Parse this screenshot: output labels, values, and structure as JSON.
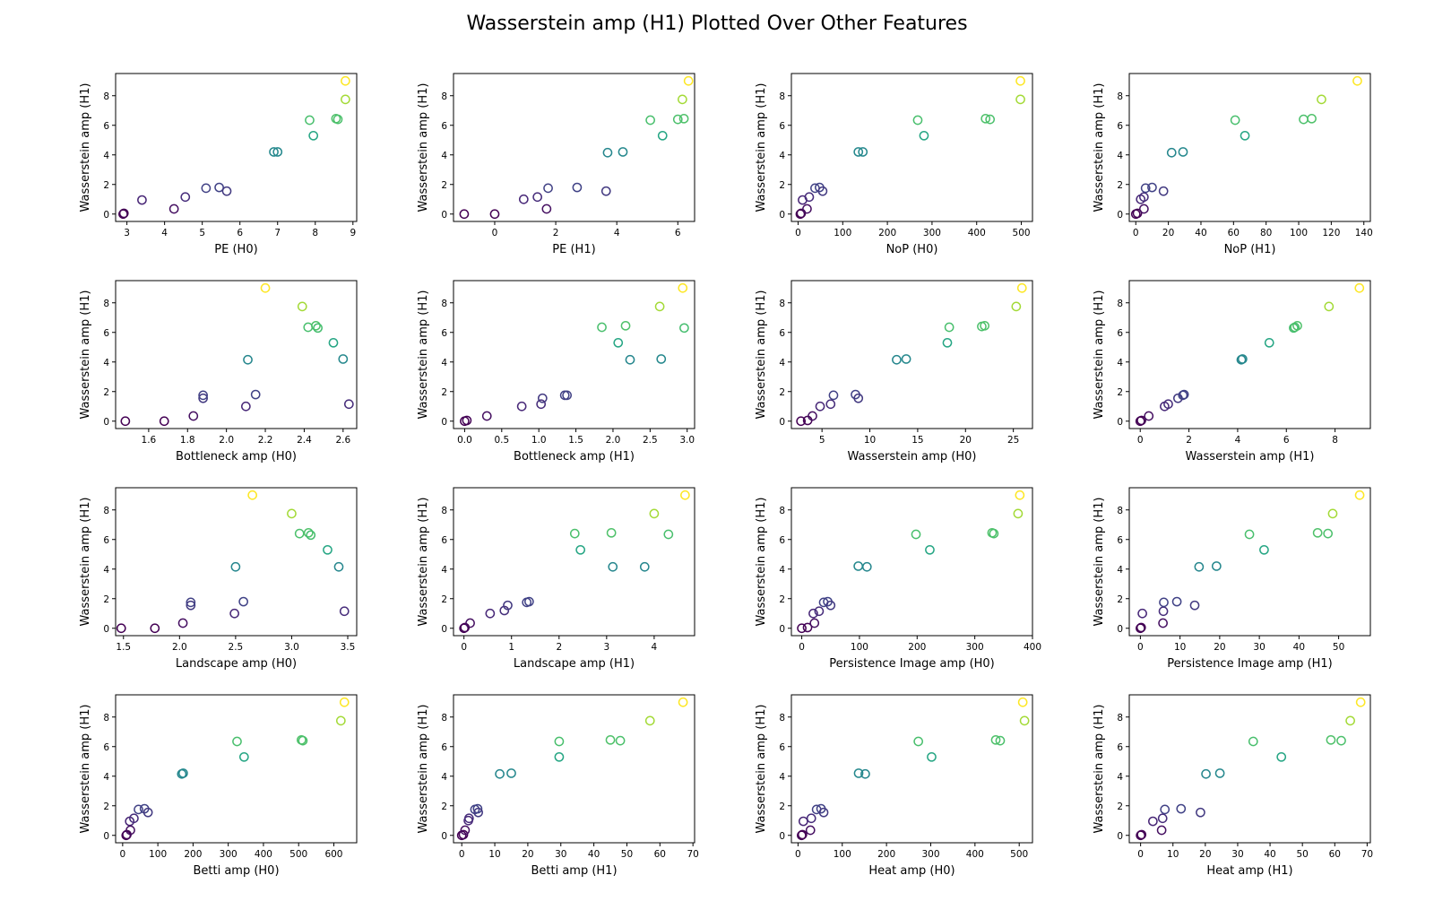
{
  "figure": {
    "title": "Wasserstein amp (H1) Plotted Over Other Features"
  },
  "colors": {
    "palette": "viridis",
    "point_style": "hollow-circle",
    "axes": "#000000"
  },
  "chart_data": [
    {
      "type": "scatter",
      "xlabel": "PE (H0)",
      "ylabel": "Wasserstein amp (H1)",
      "xlim": [
        2.7,
        9.1
      ],
      "ylim": [
        -0.5,
        9.5
      ],
      "xticks": [
        3,
        4,
        5,
        6,
        7,
        8,
        9
      ],
      "yticks": [
        0,
        2,
        4,
        6,
        8
      ],
      "points": [
        [
          2.9,
          0.0
        ],
        [
          2.92,
          0.05
        ],
        [
          3.4,
          0.95
        ],
        [
          4.25,
          0.35
        ],
        [
          4.55,
          1.15
        ],
        [
          5.1,
          1.75
        ],
        [
          5.45,
          1.8
        ],
        [
          5.65,
          1.55
        ],
        [
          6.9,
          4.2
        ],
        [
          7.0,
          4.2
        ],
        [
          7.85,
          6.35
        ],
        [
          7.95,
          5.3
        ],
        [
          8.55,
          6.45
        ],
        [
          8.6,
          6.4
        ],
        [
          8.8,
          7.75
        ],
        [
          8.8,
          9.0
        ]
      ]
    },
    {
      "type": "scatter",
      "xlabel": "PE (H1)",
      "ylabel": "Wasserstein amp (H1)",
      "xlim": [
        -1.35,
        6.55
      ],
      "ylim": [
        -0.5,
        9.5
      ],
      "xticks": [
        0,
        2,
        4,
        6
      ],
      "yticks": [
        0,
        2,
        4,
        6,
        8
      ],
      "points": [
        [
          -1.0,
          0.0
        ],
        [
          0.0,
          0.0
        ],
        [
          0.95,
          1.0
        ],
        [
          1.4,
          1.15
        ],
        [
          1.7,
          0.35
        ],
        [
          1.75,
          1.75
        ],
        [
          2.7,
          1.8
        ],
        [
          3.65,
          1.55
        ],
        [
          3.7,
          4.15
        ],
        [
          4.2,
          4.2
        ],
        [
          5.1,
          6.35
        ],
        [
          5.5,
          5.3
        ],
        [
          6.0,
          6.4
        ],
        [
          6.15,
          7.75
        ],
        [
          6.2,
          6.45
        ],
        [
          6.35,
          9.0
        ]
      ]
    },
    {
      "type": "scatter",
      "xlabel": "NoP (H0)",
      "ylabel": "Wasserstein amp (H1)",
      "xlim": [
        -15,
        525
      ],
      "ylim": [
        -0.5,
        9.5
      ],
      "xticks": [
        0,
        100,
        200,
        300,
        400,
        500
      ],
      "yticks": [
        0,
        2,
        4,
        6,
        8
      ],
      "points": [
        [
          5,
          0.0
        ],
        [
          7,
          0.05
        ],
        [
          10,
          0.95
        ],
        [
          20,
          0.35
        ],
        [
          25,
          1.15
        ],
        [
          38,
          1.75
        ],
        [
          48,
          1.8
        ],
        [
          55,
          1.55
        ],
        [
          135,
          4.2
        ],
        [
          145,
          4.2
        ],
        [
          268,
          6.35
        ],
        [
          282,
          5.3
        ],
        [
          420,
          6.45
        ],
        [
          430,
          6.4
        ],
        [
          498,
          7.75
        ],
        [
          498,
          9.0
        ]
      ]
    },
    {
      "type": "scatter",
      "xlabel": "NoP (H1)",
      "ylabel": "Wasserstein amp (H1)",
      "xlim": [
        -4,
        144
      ],
      "ylim": [
        -0.5,
        9.5
      ],
      "xticks": [
        0,
        20,
        40,
        60,
        80,
        100,
        120,
        140
      ],
      "yticks": [
        0,
        2,
        4,
        6,
        8
      ],
      "points": [
        [
          0,
          0.0
        ],
        [
          1,
          0.05
        ],
        [
          3,
          1.0
        ],
        [
          5,
          0.35
        ],
        [
          5,
          1.15
        ],
        [
          6,
          1.75
        ],
        [
          10,
          1.8
        ],
        [
          17,
          1.55
        ],
        [
          22,
          4.15
        ],
        [
          29,
          4.2
        ],
        [
          61,
          6.35
        ],
        [
          67,
          5.3
        ],
        [
          103,
          6.4
        ],
        [
          108,
          6.45
        ],
        [
          114,
          7.75
        ],
        [
          136,
          9.0
        ]
      ]
    },
    {
      "type": "scatter",
      "xlabel": "Bottleneck amp (H0)",
      "ylabel": "Wasserstein amp (H1)",
      "xlim": [
        1.43,
        2.67
      ],
      "ylim": [
        -0.5,
        9.5
      ],
      "xticks": [
        1.6,
        1.8,
        2.0,
        2.2,
        2.4,
        2.6
      ],
      "yticks": [
        0,
        2,
        4,
        6,
        8
      ],
      "points": [
        [
          1.48,
          0.0
        ],
        [
          1.68,
          0.0
        ],
        [
          1.83,
          0.35
        ],
        [
          1.88,
          1.55
        ],
        [
          1.88,
          1.75
        ],
        [
          2.1,
          1.0
        ],
        [
          2.11,
          4.15
        ],
        [
          2.15,
          1.8
        ],
        [
          2.2,
          9.0
        ],
        [
          2.39,
          7.75
        ],
        [
          2.42,
          6.35
        ],
        [
          2.46,
          6.45
        ],
        [
          2.47,
          6.3
        ],
        [
          2.55,
          5.3
        ],
        [
          2.6,
          4.2
        ],
        [
          2.63,
          1.15
        ]
      ]
    },
    {
      "type": "scatter",
      "xlabel": "Bottleneck amp (H1)",
      "ylabel": "Wasserstein amp (H1)",
      "xlim": [
        -0.15,
        3.1
      ],
      "ylim": [
        -0.5,
        9.5
      ],
      "xticks": [
        0.0,
        0.5,
        1.0,
        1.5,
        2.0,
        2.5,
        3.0
      ],
      "yticks": [
        0,
        2,
        4,
        6,
        8
      ],
      "points": [
        [
          0.0,
          0.0
        ],
        [
          0.03,
          0.05
        ],
        [
          0.3,
          0.35
        ],
        [
          0.77,
          1.0
        ],
        [
          1.03,
          1.15
        ],
        [
          1.05,
          1.55
        ],
        [
          1.35,
          1.75
        ],
        [
          1.38,
          1.75
        ],
        [
          1.85,
          6.35
        ],
        [
          2.07,
          5.3
        ],
        [
          2.17,
          6.45
        ],
        [
          2.23,
          4.15
        ],
        [
          2.63,
          7.75
        ],
        [
          2.65,
          4.2
        ],
        [
          2.94,
          9.0
        ],
        [
          2.96,
          6.3
        ]
      ]
    },
    {
      "type": "scatter",
      "xlabel": "Wasserstein amp (H0)",
      "ylabel": "Wasserstein amp (H1)",
      "xlim": [
        1.8,
        27.0
      ],
      "ylim": [
        -0.5,
        9.5
      ],
      "xticks": [
        5,
        10,
        15,
        20,
        25
      ],
      "yticks": [
        0,
        2,
        4,
        6,
        8
      ],
      "points": [
        [
          2.8,
          0.0
        ],
        [
          3.5,
          0.05
        ],
        [
          4.0,
          0.35
        ],
        [
          4.8,
          1.0
        ],
        [
          5.9,
          1.15
        ],
        [
          6.2,
          1.75
        ],
        [
          8.5,
          1.8
        ],
        [
          8.8,
          1.55
        ],
        [
          12.8,
          4.15
        ],
        [
          13.8,
          4.2
        ],
        [
          18.1,
          5.3
        ],
        [
          18.3,
          6.35
        ],
        [
          21.7,
          6.4
        ],
        [
          22.0,
          6.45
        ],
        [
          25.3,
          7.75
        ],
        [
          25.9,
          9.0
        ]
      ]
    },
    {
      "type": "scatter",
      "xlabel": "Wasserstein amp (H1)",
      "ylabel": "Wasserstein amp (H1)",
      "xlim": [
        -0.45,
        9.45
      ],
      "ylim": [
        -0.5,
        9.5
      ],
      "xticks": [
        0,
        2,
        4,
        6,
        8
      ],
      "yticks": [
        0,
        2,
        4,
        6,
        8
      ],
      "points": [
        [
          0.0,
          0.0
        ],
        [
          0.05,
          0.05
        ],
        [
          0.35,
          0.35
        ],
        [
          1.0,
          1.0
        ],
        [
          1.15,
          1.15
        ],
        [
          1.55,
          1.55
        ],
        [
          1.75,
          1.75
        ],
        [
          1.8,
          1.8
        ],
        [
          4.15,
          4.15
        ],
        [
          4.2,
          4.2
        ],
        [
          5.3,
          5.3
        ],
        [
          6.3,
          6.3
        ],
        [
          6.35,
          6.35
        ],
        [
          6.45,
          6.45
        ],
        [
          7.75,
          7.75
        ],
        [
          9.0,
          9.0
        ]
      ]
    },
    {
      "type": "scatter",
      "xlabel": "Landscape amp (H0)",
      "ylabel": "Wasserstein amp (H1)",
      "xlim": [
        1.43,
        3.58
      ],
      "ylim": [
        -0.5,
        9.5
      ],
      "xticks": [
        1.5,
        2.0,
        2.5,
        3.0,
        3.5
      ],
      "yticks": [
        0,
        2,
        4,
        6,
        8
      ],
      "points": [
        [
          1.48,
          0.0
        ],
        [
          1.78,
          0.0
        ],
        [
          2.03,
          0.35
        ],
        [
          2.1,
          1.55
        ],
        [
          2.1,
          1.75
        ],
        [
          2.49,
          1.0
        ],
        [
          2.5,
          4.15
        ],
        [
          2.57,
          1.8
        ],
        [
          2.65,
          9.0
        ],
        [
          3.0,
          7.75
        ],
        [
          3.07,
          6.4
        ],
        [
          3.15,
          6.45
        ],
        [
          3.17,
          6.3
        ],
        [
          3.32,
          5.3
        ],
        [
          3.42,
          4.15
        ],
        [
          3.47,
          1.15
        ]
      ]
    },
    {
      "type": "scatter",
      "xlabel": "Landscape amp (H1)",
      "ylabel": "Wasserstein amp (H1)",
      "xlim": [
        -0.22,
        4.85
      ],
      "ylim": [
        -0.5,
        9.5
      ],
      "xticks": [
        0,
        1,
        2,
        3,
        4
      ],
      "yticks": [
        0,
        2,
        4,
        6,
        8
      ],
      "points": [
        [
          0.0,
          0.0
        ],
        [
          0.02,
          0.05
        ],
        [
          0.13,
          0.35
        ],
        [
          0.55,
          1.0
        ],
        [
          0.85,
          1.2
        ],
        [
          0.92,
          1.55
        ],
        [
          1.32,
          1.75
        ],
        [
          1.37,
          1.8
        ],
        [
          2.33,
          6.4
        ],
        [
          2.45,
          5.3
        ],
        [
          3.1,
          6.45
        ],
        [
          3.13,
          4.15
        ],
        [
          3.8,
          4.15
        ],
        [
          4.0,
          7.75
        ],
        [
          4.3,
          6.35
        ],
        [
          4.65,
          9.0
        ]
      ]
    },
    {
      "type": "scatter",
      "xlabel": "Persistence Image amp (H0)",
      "ylabel": "Wasserstein amp (H1)",
      "xlim": [
        -18,
        400
      ],
      "ylim": [
        -0.5,
        9.5
      ],
      "xticks": [
        0,
        100,
        200,
        300,
        400
      ],
      "yticks": [
        0,
        2,
        4,
        6,
        8
      ],
      "points": [
        [
          0,
          0.0
        ],
        [
          10,
          0.05
        ],
        [
          20,
          1.0
        ],
        [
          22,
          0.35
        ],
        [
          30,
          1.15
        ],
        [
          38,
          1.75
        ],
        [
          45,
          1.8
        ],
        [
          50,
          1.55
        ],
        [
          98,
          4.2
        ],
        [
          113,
          4.15
        ],
        [
          198,
          6.35
        ],
        [
          222,
          5.3
        ],
        [
          330,
          6.45
        ],
        [
          333,
          6.4
        ],
        [
          375,
          7.75
        ],
        [
          378,
          9.0
        ]
      ]
    },
    {
      "type": "scatter",
      "xlabel": "Persistence Image amp (H1)",
      "ylabel": "Wasserstein amp (H1)",
      "xlim": [
        -2.8,
        58
      ],
      "ylim": [
        -0.5,
        9.5
      ],
      "xticks": [
        0,
        10,
        20,
        30,
        40,
        50
      ],
      "yticks": [
        0,
        2,
        4,
        6,
        8
      ],
      "points": [
        [
          0,
          0.0
        ],
        [
          0.2,
          0.05
        ],
        [
          0.5,
          1.0
        ],
        [
          5.7,
          0.35
        ],
        [
          5.8,
          1.15
        ],
        [
          5.9,
          1.75
        ],
        [
          9.2,
          1.8
        ],
        [
          13.7,
          1.55
        ],
        [
          14.8,
          4.15
        ],
        [
          19.2,
          4.2
        ],
        [
          27.5,
          6.35
        ],
        [
          31.2,
          5.3
        ],
        [
          44.7,
          6.45
        ],
        [
          47.3,
          6.4
        ],
        [
          48.5,
          7.75
        ],
        [
          55.3,
          9.0
        ]
      ]
    },
    {
      "type": "scatter",
      "xlabel": "Betti amp (H0)",
      "ylabel": "Wasserstein amp (H1)",
      "xlim": [
        -20,
        665
      ],
      "ylim": [
        -0.5,
        9.5
      ],
      "xticks": [
        0,
        100,
        200,
        300,
        400,
        500,
        600
      ],
      "yticks": [
        0,
        2,
        4,
        6,
        8
      ],
      "points": [
        [
          10,
          0.0
        ],
        [
          12,
          0.05
        ],
        [
          20,
          0.95
        ],
        [
          22,
          0.35
        ],
        [
          32,
          1.15
        ],
        [
          45,
          1.75
        ],
        [
          62,
          1.8
        ],
        [
          72,
          1.55
        ],
        [
          168,
          4.15
        ],
        [
          172,
          4.2
        ],
        [
          325,
          6.35
        ],
        [
          345,
          5.3
        ],
        [
          508,
          6.45
        ],
        [
          512,
          6.4
        ],
        [
          620,
          7.75
        ],
        [
          630,
          9.0
        ]
      ]
    },
    {
      "type": "scatter",
      "xlabel": "Betti amp (H1)",
      "ylabel": "Wasserstein amp (H1)",
      "xlim": [
        -2.5,
        70.5
      ],
      "ylim": [
        -0.5,
        9.5
      ],
      "xticks": [
        0,
        10,
        20,
        30,
        40,
        50,
        60,
        70
      ],
      "yticks": [
        0,
        2,
        4,
        6,
        8
      ],
      "points": [
        [
          0,
          0.0
        ],
        [
          0.5,
          0.05
        ],
        [
          1,
          0.35
        ],
        [
          2,
          1.0
        ],
        [
          2.2,
          1.15
        ],
        [
          4,
          1.75
        ],
        [
          4.8,
          1.8
        ],
        [
          5,
          1.55
        ],
        [
          11.5,
          4.15
        ],
        [
          15,
          4.2
        ],
        [
          29.5,
          5.3
        ],
        [
          29.5,
          6.35
        ],
        [
          45,
          6.45
        ],
        [
          48,
          6.4
        ],
        [
          57,
          7.75
        ],
        [
          67,
          9.0
        ]
      ]
    },
    {
      "type": "scatter",
      "xlabel": "Heat amp (H0)",
      "ylabel": "Wasserstein amp (H1)",
      "xlim": [
        -15,
        530
      ],
      "ylim": [
        -0.5,
        9.5
      ],
      "xticks": [
        0,
        100,
        200,
        300,
        400,
        500
      ],
      "yticks": [
        0,
        2,
        4,
        6,
        8
      ],
      "points": [
        [
          8,
          0.0
        ],
        [
          10,
          0.05
        ],
        [
          12,
          0.95
        ],
        [
          28,
          0.35
        ],
        [
          30,
          1.15
        ],
        [
          42,
          1.75
        ],
        [
          52,
          1.8
        ],
        [
          58,
          1.55
        ],
        [
          137,
          4.2
        ],
        [
          152,
          4.15
        ],
        [
          272,
          6.35
        ],
        [
          302,
          5.3
        ],
        [
          447,
          6.45
        ],
        [
          457,
          6.4
        ],
        [
          508,
          9.0
        ],
        [
          512,
          7.75
        ]
      ]
    },
    {
      "type": "scatter",
      "xlabel": "Heat amp (H1)",
      "ylabel": "Wasserstein amp (H1)",
      "xlim": [
        -3.5,
        71
      ],
      "ylim": [
        -0.5,
        9.5
      ],
      "xticks": [
        0,
        10,
        20,
        30,
        40,
        50,
        60,
        70
      ],
      "yticks": [
        0,
        2,
        4,
        6,
        8
      ],
      "points": [
        [
          0,
          0.0
        ],
        [
          0.3,
          0.05
        ],
        [
          3.8,
          0.95
        ],
        [
          6.5,
          0.35
        ],
        [
          6.8,
          1.15
        ],
        [
          7.5,
          1.75
        ],
        [
          12.5,
          1.8
        ],
        [
          18.5,
          1.55
        ],
        [
          20.2,
          4.15
        ],
        [
          24.5,
          4.2
        ],
        [
          34.8,
          6.35
        ],
        [
          43.5,
          5.3
        ],
        [
          58.8,
          6.45
        ],
        [
          62,
          6.4
        ],
        [
          64.8,
          7.75
        ],
        [
          68,
          9.0
        ]
      ]
    }
  ]
}
